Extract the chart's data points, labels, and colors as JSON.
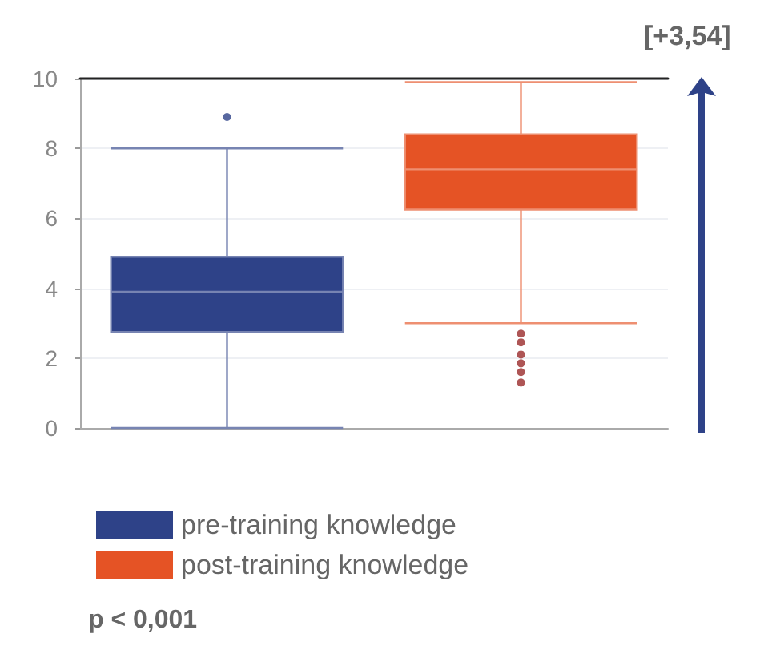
{
  "chart_data": {
    "type": "box",
    "categories": [
      null,
      null
    ],
    "series": [
      {
        "name": "pre-training knowledge",
        "color": "#2e4288",
        "boxes": [
          {
            "low": 0,
            "q1": 2.75,
            "median": 3.9,
            "q3": 4.9,
            "high": 8,
            "outliers": [
              8.9
            ]
          },
          null
        ]
      },
      {
        "name": "post-training knowledge",
        "color": "#e55325",
        "boxes": [
          null,
          {
            "low": 3,
            "q1": 6.25,
            "median": 7.4,
            "q3": 8.4,
            "high": 9.9,
            "outliers": [
              2.7,
              2.45,
              2.1,
              1.85,
              1.6,
              1.3
            ]
          }
        ]
      }
    ],
    "ylim": [
      0,
      10
    ],
    "yticks": [
      0,
      2,
      4,
      6,
      8,
      10
    ],
    "grid": "y",
    "legend": "bottom",
    "annotations": [
      "[+3,54]",
      "p < 0,001"
    ]
  }
}
